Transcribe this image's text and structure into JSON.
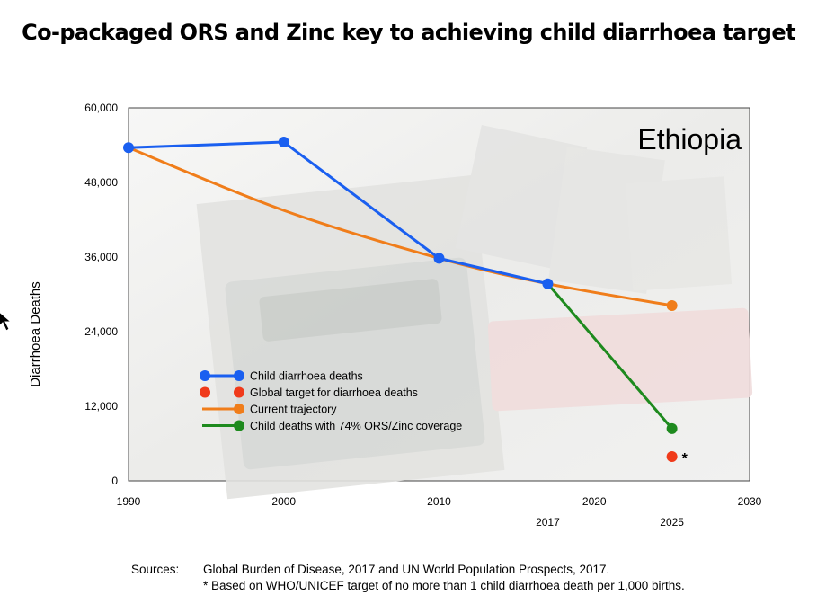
{
  "title": "Co-packaged ORS and Zinc key to achieving child diarrhoea target",
  "chart_data": {
    "type": "line",
    "title": "Co-packaged ORS and Zinc key to achieving child diarrhoea target",
    "annotation_country": "Ethiopia",
    "xlabel": "",
    "ylabel": "Diarrhoea Deaths",
    "xlim": [
      1990,
      2030
    ],
    "ylim": [
      0,
      60000
    ],
    "x_ticks": [
      "1990",
      "2000",
      "2010",
      "2020",
      "2030"
    ],
    "x_ticks_secondary": [
      "2017",
      "2025"
    ],
    "y_ticks": [
      "0",
      "12,000",
      "24,000",
      "36,000",
      "48,000",
      "60,000"
    ],
    "grid": false,
    "legend_position": "lower-left",
    "series": [
      {
        "name": "Child diarrhoea deaths",
        "color": "#1a5ff0",
        "markers": "all",
        "x": [
          1990,
          2000,
          2010,
          2017
        ],
        "y": [
          53600,
          54500,
          35800,
          31700
        ]
      },
      {
        "name": "Global target for diarrhoea deaths",
        "color": "#f03a1a",
        "markers": "all",
        "line": false,
        "x": [
          2025
        ],
        "y": [
          3900
        ],
        "note": "*"
      },
      {
        "name": "Current trajectory",
        "color": "#f07d1a",
        "markers": "last",
        "smooth": true,
        "x": [
          1990,
          2000,
          2010,
          2017,
          2025
        ],
        "y": [
          53600,
          43500,
          35800,
          31700,
          28200
        ]
      },
      {
        "name": "Child deaths with 74% ORS/Zinc coverage",
        "color": "#1e8a1e",
        "markers": "last",
        "x": [
          2017,
          2025
        ],
        "y": [
          31700,
          8400
        ]
      }
    ]
  },
  "sources": {
    "label": "Sources:",
    "line1": "Global Burden of Disease, 2017 and UN World Population Prospects, 2017.",
    "line2": "* Based on WHO/UNICEF target of no more than 1 child diarrhoea death per 1,000 births."
  }
}
